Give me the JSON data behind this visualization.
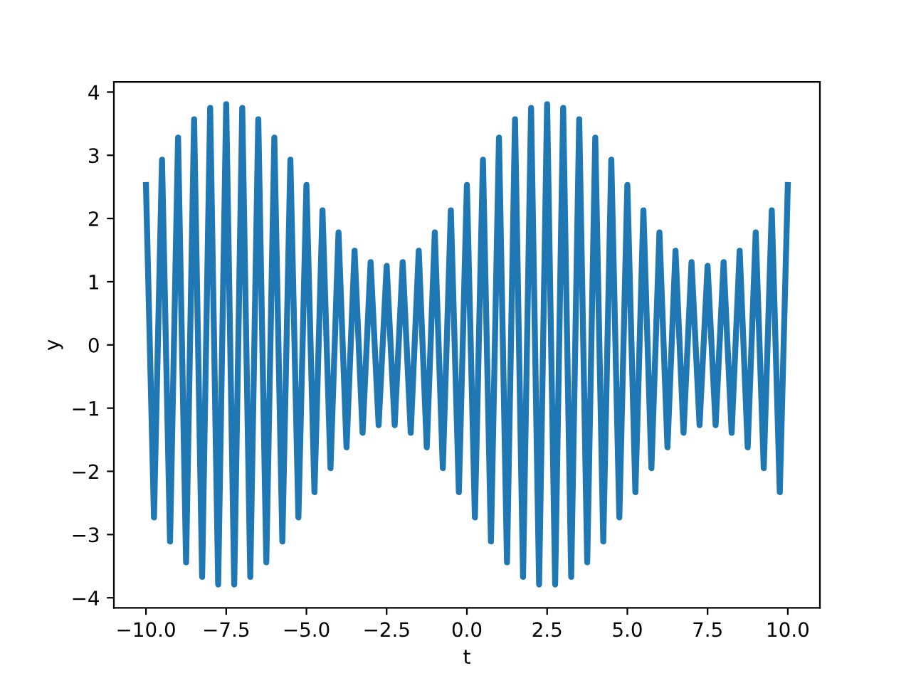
{
  "chart_data": {
    "type": "line",
    "xlabel": "t",
    "ylabel": "y",
    "x": [
      -10,
      -9.75,
      -9.5,
      -9.25,
      -9,
      -8.75,
      -8.5,
      -8.25,
      -8,
      -7.75,
      -7.5,
      -7.25,
      -7,
      -6.75,
      -6.5,
      -6.25,
      -6,
      -5.75,
      -5.5,
      -5.25,
      -5,
      -4.75,
      -4.5,
      -4.25,
      -4,
      -3.75,
      -3.5,
      -3.25,
      -3,
      -2.75,
      -2.5,
      -2.25,
      -2,
      -1.75,
      -1.5,
      -1.25,
      -1,
      -0.75,
      -0.5,
      -0.25,
      0,
      0.25,
      0.5,
      0.75,
      1,
      1.25,
      1.5,
      1.75,
      2,
      2.25,
      2.5,
      2.75,
      3,
      3.25,
      3.5,
      3.75,
      4,
      4.25,
      4.5,
      4.75,
      5,
      5.25,
      5.5,
      5.75,
      6,
      6.25,
      6.5,
      6.75,
      7,
      7.25,
      7.5,
      7.75,
      8,
      8.25,
      8.5,
      8.75,
      9,
      9.25,
      9.5,
      9.75,
      10
    ],
    "series": [
      {
        "color": "#1f77b4",
        "values": [
          2.53,
          -2.73,
          2.93,
          -3.11,
          3.28,
          -3.44,
          3.57,
          -3.67,
          3.75,
          -3.79,
          3.81,
          -3.79,
          3.75,
          -3.67,
          3.57,
          -3.44,
          3.28,
          -3.11,
          2.93,
          -2.73,
          2.53,
          -2.33,
          2.13,
          -1.95,
          1.78,
          -1.62,
          1.49,
          -1.39,
          1.31,
          -1.27,
          1.25,
          -1.27,
          1.31,
          -1.39,
          1.49,
          -1.62,
          1.78,
          -1.95,
          2.13,
          -2.33,
          2.53,
          -2.73,
          2.93,
          -3.11,
          3.28,
          -3.44,
          3.57,
          -3.67,
          3.75,
          -3.79,
          3.81,
          -3.79,
          3.75,
          -3.67,
          3.57,
          -3.44,
          3.28,
          -3.11,
          2.93,
          -2.73,
          2.53,
          -2.33,
          2.13,
          -1.95,
          1.78,
          -1.62,
          1.49,
          -1.39,
          1.31,
          -1.27,
          1.25,
          -1.27,
          1.31,
          -1.39,
          1.49,
          -1.62,
          1.78,
          -1.95,
          2.13,
          -2.33,
          2.53
        ]
      }
    ],
    "xlim": [
      -11,
      11
    ],
    "ylim": [
      -4.16,
      4.16
    ],
    "xticks": [
      {
        "value": -10,
        "label": "−10.0"
      },
      {
        "value": -7.5,
        "label": "−7.5"
      },
      {
        "value": -5,
        "label": "−5.0"
      },
      {
        "value": -2.5,
        "label": "−2.5"
      },
      {
        "value": 0,
        "label": "0.0"
      },
      {
        "value": 2.5,
        "label": "2.5"
      },
      {
        "value": 5,
        "label": "5.0"
      },
      {
        "value": 7.5,
        "label": "7.5"
      },
      {
        "value": 10,
        "label": "10.0"
      }
    ],
    "yticks": [
      {
        "value": -4,
        "label": "−4"
      },
      {
        "value": -3,
        "label": "−3"
      },
      {
        "value": -2,
        "label": "−2"
      },
      {
        "value": -1,
        "label": "−1"
      },
      0,
      1,
      2,
      3,
      4
    ],
    "grid": false,
    "legend": false,
    "marker": "none",
    "line_style": "solid"
  }
}
